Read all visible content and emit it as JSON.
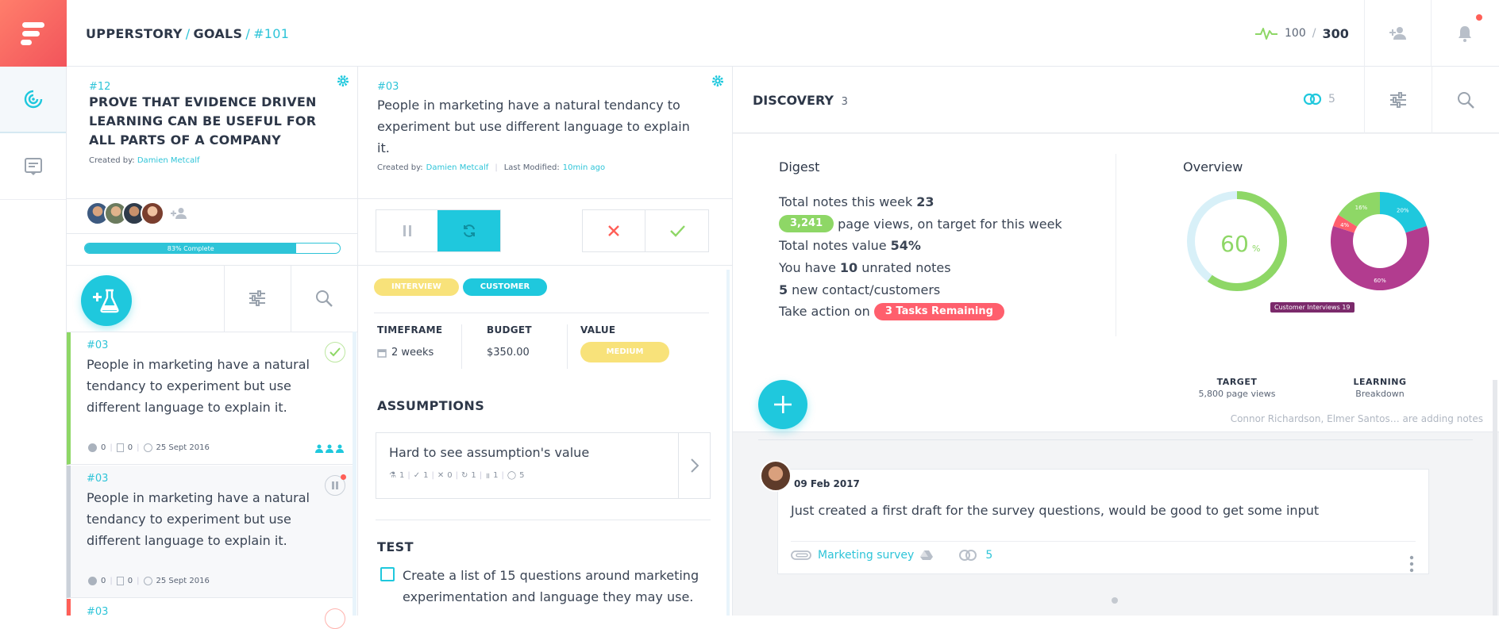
{
  "breadcrumb": {
    "project": "UPPERSTORY",
    "section": "GOALS",
    "id": "#101",
    "sep": "/"
  },
  "score": {
    "current": "100",
    "sep": "/",
    "total": "300"
  },
  "goal": {
    "id": "#12",
    "title": "PROVE THAT EVIDENCE DRIVEN LEARNING CAN BE USEFUL FOR ALL PARTS OF A COMPANY",
    "created_label": "Created by:",
    "author": "Damien Metcalf",
    "progress_label": "83% Complete",
    "progress": 0.83
  },
  "experiments": [
    {
      "id": "#03",
      "text": "People in marketing have a natural tendancy to experiment but use different language to explain it.",
      "questions": "0",
      "notes": "0",
      "date": "25 Sept 2016",
      "accent": "#8ed766"
    },
    {
      "id": "#03",
      "text": "People in marketing have a natural tendancy to experiment but use different language to explain it.",
      "questions": "0",
      "notes": "0",
      "date": "25 Sept 2016",
      "accent": "#cbd1d9"
    },
    {
      "id": "#03",
      "accent": "#ff5f57"
    }
  ],
  "hypothesis": {
    "id": "#03",
    "text": "People in marketing have a natural tendancy to experiment but use different language to explain it.",
    "created_label": "Created by:",
    "author": "Damien Metcalf",
    "modified_label": "Last Modified:",
    "modified": "10min ago",
    "tags": [
      "INTERVIEW",
      "CUSTOMER"
    ],
    "timeframe_label": "TIMEFRAME",
    "timeframe": "2 weeks",
    "budget_label": "BUDGET",
    "budget": "$350.00",
    "value_label": "VALUE",
    "value": "MEDIUM",
    "assumptions_label": "ASSUMPTIONS",
    "assumption": {
      "text": "Hard to see assumption's value",
      "stats": [
        "1",
        "1",
        "0",
        "1",
        "1",
        "5"
      ]
    },
    "test_label": "TEST",
    "test_item": "Create a list of 15 questions around marketing experimentation and language they may use."
  },
  "discovery": {
    "title": "DISCOVERY",
    "count": "3",
    "comments": "5",
    "digest_title": "Digest",
    "digest": {
      "notes_week_label": "Total notes this week",
      "notes_week": "23",
      "page_views": "3,241",
      "page_views_label": "page views, on target for this week",
      "notes_value_label": "Total notes value",
      "notes_value": "54%",
      "unrated_pre": "You have",
      "unrated": "10",
      "unrated_post": "unrated notes",
      "contacts": "5",
      "contacts_label": "new contact/customers",
      "action_label": "Take action on",
      "tasks": "3 Tasks Remaining"
    },
    "overview_title": "Overview",
    "target": {
      "value": 60,
      "value_text": "60",
      "unit": "%",
      "label": "TARGET",
      "sub": "5,800 page views"
    },
    "learning": {
      "label": "LEARNING",
      "sub": "Breakdown",
      "tooltip": "Customer Interviews 19",
      "slices": [
        {
          "label": "20%",
          "value": 20,
          "color": "#1fc8dd"
        },
        {
          "label": "60%",
          "value": 60,
          "color": "#b23c8f"
        },
        {
          "label": "4%",
          "value": 4,
          "color": "#ff5f6d"
        },
        {
          "label": "16%",
          "value": 16,
          "color": "#8ed766"
        }
      ]
    },
    "activity": "Connor Richardson, Elmer Santos… are adding notes",
    "note": {
      "date": "09 Feb 2017",
      "text": "Just created a first draft for the survey questions, would be good to get some input",
      "attachment": "Marketing survey",
      "comments": "5"
    }
  }
}
